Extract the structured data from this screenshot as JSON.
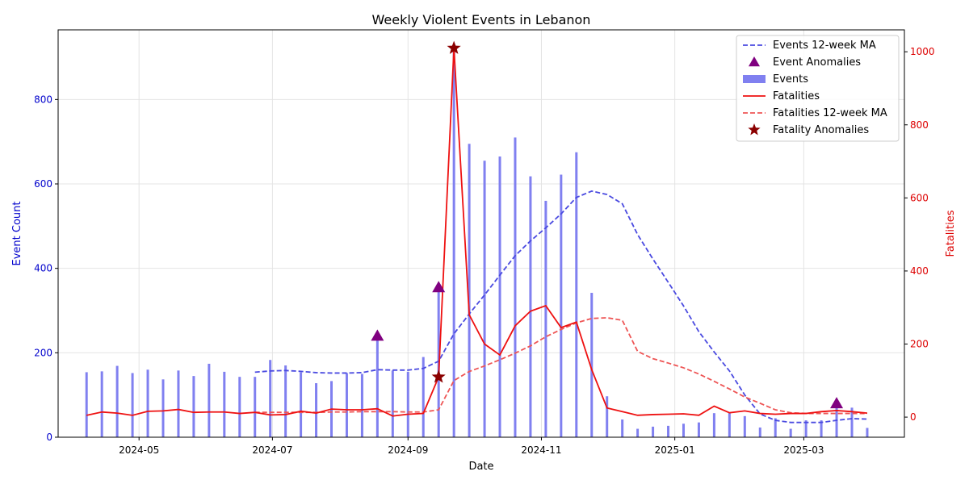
{
  "chart_data": {
    "type": "bar",
    "title": "Weekly Violent Events in Lebanon",
    "xlabel": "Date",
    "ylabel_left": "Event Count",
    "ylabel_right": "Fatalities",
    "x_range": [
      "2024-03-25",
      "2025-04-16"
    ],
    "y_left_range": [
      0,
      965
    ],
    "y_right_range": [
      -55,
      1060
    ],
    "x_ticks": [
      {
        "date": "2024-05-01",
        "label": "2024-05"
      },
      {
        "date": "2024-07-01",
        "label": "2024-07"
      },
      {
        "date": "2024-09-01",
        "label": "2024-09"
      },
      {
        "date": "2024-11-01",
        "label": "2024-11"
      },
      {
        "date": "2025-01-01",
        "label": "2025-01"
      },
      {
        "date": "2025-03-01",
        "label": "2025-03"
      }
    ],
    "y_left_ticks": [
      0,
      200,
      400,
      600,
      800
    ],
    "y_right_ticks": [
      0,
      200,
      400,
      600,
      800,
      1000
    ],
    "grid": true,
    "legend_position": "top-right",
    "colors": {
      "events_bar": "#8080f0",
      "events_ma": "#4a4ae0",
      "event_anomaly": "#800080",
      "fatalities": "#ee1111",
      "fatalities_ma": "#ee5555",
      "fatality_anomaly": "#8b0000",
      "left_axis": "#0000cc",
      "right_axis": "#dd0000"
    },
    "legend": [
      {
        "key": "events_ma",
        "label": "Events 12-week MA"
      },
      {
        "key": "event_anomaly",
        "label": "Event Anomalies"
      },
      {
        "key": "events",
        "label": "Events"
      },
      {
        "key": "fatalities",
        "label": "Fatalities"
      },
      {
        "key": "fatalities_ma",
        "label": "Fatalities 12-week MA"
      },
      {
        "key": "fatality_anomaly",
        "label": "Fatality Anomalies"
      }
    ],
    "weeks": [
      "2024-04-07",
      "2024-04-14",
      "2024-04-21",
      "2024-04-28",
      "2024-05-05",
      "2024-05-12",
      "2024-05-19",
      "2024-05-26",
      "2024-06-02",
      "2024-06-09",
      "2024-06-16",
      "2024-06-23",
      "2024-06-30",
      "2024-07-07",
      "2024-07-14",
      "2024-07-21",
      "2024-07-28",
      "2024-08-04",
      "2024-08-11",
      "2024-08-18",
      "2024-08-25",
      "2024-09-01",
      "2024-09-08",
      "2024-09-15",
      "2024-09-22",
      "2024-09-29",
      "2024-10-06",
      "2024-10-13",
      "2024-10-20",
      "2024-10-27",
      "2024-11-03",
      "2024-11-10",
      "2024-11-17",
      "2024-11-24",
      "2024-12-01",
      "2024-12-08",
      "2024-12-15",
      "2024-12-22",
      "2024-12-29",
      "2025-01-05",
      "2025-01-12",
      "2025-01-19",
      "2025-01-26",
      "2025-02-02",
      "2025-02-09",
      "2025-02-16",
      "2025-02-23",
      "2025-03-02",
      "2025-03-09",
      "2025-03-16",
      "2025-03-23",
      "2025-03-30"
    ],
    "events": [
      154,
      156,
      169,
      152,
      160,
      137,
      158,
      145,
      174,
      155,
      143,
      143,
      183,
      170,
      154,
      128,
      133,
      152,
      150,
      240,
      158,
      155,
      190,
      355,
      920,
      695,
      655,
      665,
      710,
      618,
      560,
      622,
      675,
      342,
      97,
      42,
      20,
      25,
      27,
      32,
      35,
      57,
      57,
      50,
      23,
      45,
      20,
      40,
      40,
      80,
      70,
      22
    ],
    "events_ma": [
      null,
      null,
      null,
      null,
      null,
      null,
      null,
      null,
      null,
      null,
      null,
      154,
      157,
      158,
      156,
      153,
      152,
      152,
      153,
      160,
      159,
      159,
      163,
      180,
      245,
      292,
      337,
      384,
      430,
      465,
      496,
      529,
      568,
      583,
      575,
      553,
      480,
      422,
      367,
      311,
      250,
      202,
      157,
      100,
      55,
      40,
      35,
      35,
      35,
      40,
      44,
      43
    ],
    "fatalities": [
      5,
      14,
      11,
      5,
      16,
      17,
      21,
      13,
      14,
      14,
      10,
      13,
      6,
      7,
      16,
      11,
      22,
      20,
      20,
      23,
      3,
      8,
      10,
      110,
      1010,
      280,
      200,
      170,
      250,
      290,
      305,
      245,
      260,
      130,
      25,
      15,
      5,
      7,
      8,
      9,
      5,
      30,
      12,
      17,
      10,
      8,
      10,
      10,
      15,
      18,
      15,
      11
    ],
    "fatalities_ma": [
      null,
      null,
      null,
      null,
      null,
      null,
      null,
      null,
      null,
      null,
      null,
      13,
      13,
      13,
      13,
      13,
      14,
      14,
      15,
      15,
      15,
      14,
      14,
      20,
      100,
      125,
      140,
      157,
      175,
      195,
      220,
      240,
      258,
      270,
      272,
      265,
      180,
      160,
      148,
      135,
      118,
      98,
      77,
      55,
      38,
      20,
      12,
      10,
      10,
      10,
      10,
      10
    ],
    "event_anomalies": [
      {
        "week": "2024-08-18",
        "value": 240
      },
      {
        "week": "2024-09-15",
        "value": 355
      },
      {
        "week": "2025-03-16",
        "value": 80
      }
    ],
    "fatality_anomalies": [
      {
        "week": "2024-09-15",
        "value": 110
      },
      {
        "week": "2024-09-22",
        "value": 1010
      }
    ]
  }
}
